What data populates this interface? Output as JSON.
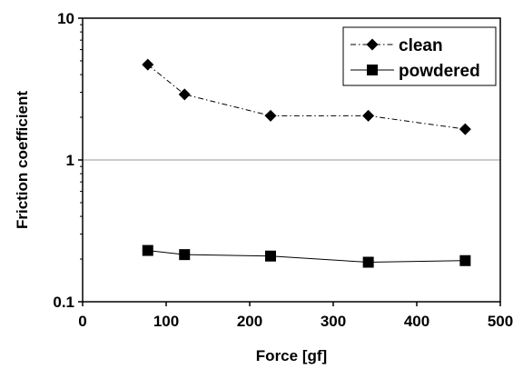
{
  "chart_data": {
    "type": "line",
    "title": "",
    "xlabel": "Force [gf]",
    "ylabel": "Friction coefficient",
    "xlim": [
      0,
      500
    ],
    "ylim": [
      0.1,
      10
    ],
    "y_scale": "log",
    "x_ticks": [
      0,
      100,
      200,
      300,
      400,
      500
    ],
    "x_tick_labels": [
      "0",
      "100",
      "200",
      "300",
      "400",
      "500"
    ],
    "y_ticks": [
      0.1,
      1,
      10
    ],
    "y_tick_labels": [
      "0.1",
      "1",
      "10"
    ],
    "grid": "horizontal line at y=1 only",
    "legend_position": "top-right",
    "series": [
      {
        "name": "clean",
        "marker": "diamond",
        "line_style": "dash-dot",
        "x": [
          78,
          122,
          225,
          342,
          458
        ],
        "y": [
          4.7,
          2.9,
          2.05,
          2.05,
          1.65
        ]
      },
      {
        "name": "powdered",
        "marker": "square",
        "line_style": "solid",
        "x": [
          78,
          122,
          225,
          342,
          458
        ],
        "y": [
          0.23,
          0.215,
          0.21,
          0.19,
          0.195
        ]
      }
    ]
  }
}
